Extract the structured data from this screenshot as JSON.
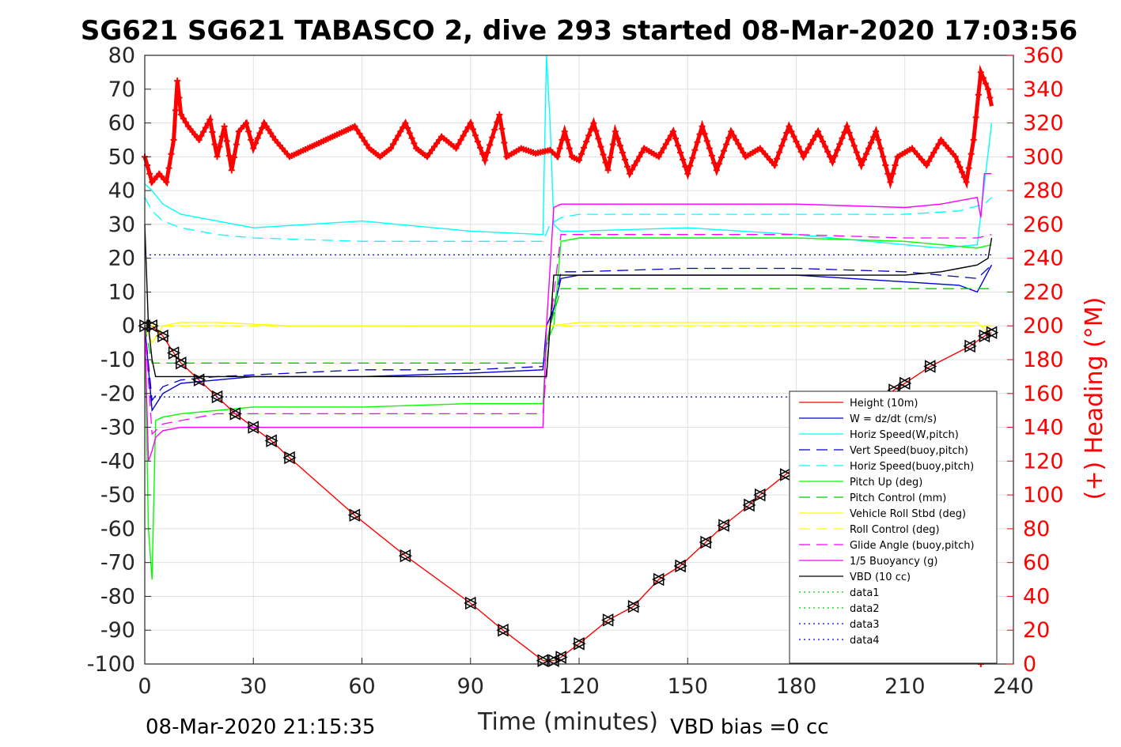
{
  "chart_data": {
    "type": "line",
    "title": "SG621 SG621 TABASCO 2, dive 293 started 08-Mar-2020 17:03:56",
    "xlabel": "Time (minutes)",
    "ylabel_right": "(+) Heading (°M)",
    "xlim": [
      0,
      240
    ],
    "ylim": [
      -100,
      80
    ],
    "ylim_right": [
      0,
      360
    ],
    "xticks": [
      "0",
      "30",
      "60",
      "90",
      "120",
      "150",
      "180",
      "210",
      "240"
    ],
    "yticks": [
      "80",
      "70",
      "60",
      "50",
      "40",
      "30",
      "20",
      "10",
      "0",
      "-10",
      "-20",
      "-30",
      "-40",
      "-50",
      "-60",
      "-70",
      "-80",
      "-90",
      "-100"
    ],
    "yticks_right": [
      "360",
      "340",
      "320",
      "300",
      "280",
      "260",
      "240",
      "220",
      "200",
      "180",
      "160",
      "140",
      "120",
      "100",
      "80",
      "60",
      "40",
      "20",
      "0"
    ],
    "grid": true,
    "legend_position": "bottom-right",
    "footer_left": "08-Mar-2020 21:15:35",
    "footer_right": "VBD bias =0 cc",
    "series": [
      {
        "name": "Height (10m)",
        "color": "#ff0000",
        "style": "solid",
        "x": [
          0,
          2,
          5,
          8,
          10,
          15,
          20,
          25,
          30,
          35,
          40,
          58,
          72,
          90,
          99,
          110,
          113,
          115,
          120,
          128,
          135,
          142,
          148,
          155,
          160,
          167,
          170,
          177,
          190,
          207,
          210,
          217,
          228,
          232,
          234
        ],
        "y": [
          0,
          0,
          -3,
          -8,
          -11,
          -16,
          -21,
          -26,
          -30,
          -34,
          -39,
          -56,
          -68,
          -82,
          -90,
          -99,
          -99,
          -98,
          -94,
          -87,
          -83,
          -75,
          -71,
          -64,
          -59,
          -53,
          -50,
          -44,
          -34,
          -19,
          -17,
          -12,
          -6,
          -3,
          -2
        ]
      },
      {
        "name": "W = dz/dt (cm/s)",
        "color": "#0000cc",
        "style": "solid",
        "x": [
          0,
          2,
          5,
          10,
          20,
          30,
          60,
          90,
          110,
          111,
          113,
          115,
          120,
          150,
          180,
          210,
          225,
          230,
          234
        ],
        "y": [
          0,
          -25,
          -20,
          -17,
          -16,
          -15,
          -15,
          -14,
          -13,
          0,
          5,
          14,
          15,
          15,
          15,
          13,
          12,
          10,
          18
        ]
      },
      {
        "name": "Horiz Speed(W,pitch)",
        "color": "#00ffff",
        "style": "solid",
        "x": [
          0,
          2,
          5,
          10,
          20,
          30,
          60,
          90,
          110,
          111,
          112,
          113,
          115,
          120,
          150,
          180,
          210,
          220,
          230,
          234
        ],
        "y": [
          42,
          40,
          36,
          33,
          31,
          29,
          31,
          28,
          27,
          80,
          60,
          30,
          28,
          28,
          29,
          27,
          24,
          23,
          24,
          60
        ]
      },
      {
        "name": "Vert Speed(buoy,pitch)",
        "color": "#0000cc",
        "style": "dashed",
        "x": [
          0,
          2,
          5,
          10,
          20,
          40,
          60,
          90,
          110,
          112,
          115,
          120,
          150,
          180,
          210,
          220,
          230,
          234
        ],
        "y": [
          0,
          -22,
          -18,
          -16,
          -15,
          -14,
          -13,
          -13,
          -12,
          0,
          16,
          16,
          17,
          17,
          16,
          15,
          14,
          18
        ]
      },
      {
        "name": "Horiz Speed(buoy,pitch)",
        "color": "#00ffff",
        "style": "dashed",
        "x": [
          0,
          2,
          5,
          10,
          20,
          30,
          60,
          90,
          110,
          112,
          115,
          120,
          150,
          180,
          210,
          225,
          232,
          234
        ],
        "y": [
          38,
          34,
          31,
          29,
          27,
          26,
          25,
          25,
          25,
          30,
          32,
          33,
          33,
          33,
          33,
          34,
          36,
          38
        ]
      },
      {
        "name": "Pitch Up (deg)",
        "color": "#00ff00",
        "style": "solid",
        "x": [
          0,
          1,
          2,
          3,
          5,
          10,
          20,
          30,
          60,
          90,
          110,
          111,
          113,
          115,
          120,
          150,
          180,
          210,
          230,
          234
        ],
        "y": [
          0,
          -60,
          -75,
          -28,
          -27,
          -26,
          -25,
          -24,
          -24,
          -23,
          -23,
          -5,
          0,
          25,
          26,
          26,
          26,
          25,
          23,
          24
        ]
      },
      {
        "name": "Pitch Control (mm)",
        "color": "#00cc00",
        "style": "dashed",
        "x": [
          0,
          2,
          5,
          110,
          112,
          115,
          234
        ],
        "y": [
          0,
          -11,
          -11,
          -11,
          0,
          11,
          11
        ]
      },
      {
        "name": "Vehicle Roll Stbd (deg)",
        "color": "#ffff00",
        "style": "solid",
        "x": [
          0,
          2,
          5,
          10,
          20,
          40,
          60,
          90,
          110,
          112,
          120,
          150,
          180,
          210,
          230,
          234
        ],
        "y": [
          0,
          -5,
          0,
          1,
          1,
          0,
          0,
          0,
          0,
          0,
          1,
          1,
          1,
          1,
          1,
          -3
        ]
      },
      {
        "name": "Roll Control (deg)",
        "color": "#ffff00",
        "style": "dashed",
        "x": [
          0,
          2,
          5,
          110,
          112,
          115,
          234
        ],
        "y": [
          0,
          0,
          0,
          0,
          0,
          0,
          0
        ]
      },
      {
        "name": "Glide Angle (buoy,pitch)",
        "color": "#ff00ff",
        "style": "dashed",
        "x": [
          0,
          2,
          5,
          10,
          20,
          60,
          90,
          110,
          112,
          115,
          120,
          150,
          180,
          210,
          230,
          234
        ],
        "y": [
          0,
          -32,
          -29,
          -28,
          -26,
          -26,
          -26,
          -26,
          0,
          27,
          27,
          27,
          27,
          26,
          26,
          27
        ]
      },
      {
        "name": "1/5 Buoyancy (g)",
        "color": "#ff00ff",
        "style": "solid",
        "x": [
          0,
          1,
          2,
          3,
          5,
          10,
          20,
          40,
          110,
          111,
          113,
          115,
          120,
          180,
          210,
          220,
          225,
          230,
          231,
          232,
          234
        ],
        "y": [
          0,
          -40,
          -37,
          -33,
          -31,
          -30,
          -30,
          -30,
          -30,
          0,
          35,
          36,
          36,
          36,
          35,
          36,
          37,
          38,
          32,
          45,
          45
        ]
      },
      {
        "name": "VBD (10 cc)",
        "color": "#000000",
        "style": "solid",
        "x": [
          0,
          1,
          2,
          3,
          110,
          111,
          112,
          113,
          210,
          220,
          225,
          230,
          233,
          234
        ],
        "y": [
          30,
          0,
          -10,
          -15,
          -15,
          -15,
          0,
          15,
          15,
          16,
          17,
          18,
          20,
          26
        ]
      },
      {
        "name": "data1",
        "color": "#00cc00",
        "style": "dotted",
        "x": [],
        "y": []
      },
      {
        "name": "data2",
        "color": "#00cc00",
        "style": "dotted",
        "x": [],
        "y": []
      },
      {
        "name": "data3",
        "color": "#0000cc",
        "style": "dotted",
        "x": [
          0,
          234
        ],
        "y": [
          21,
          21
        ]
      },
      {
        "name": "data4",
        "color": "#0000cc",
        "style": "dotted",
        "x": [
          0,
          234
        ],
        "y": [
          -21,
          -21
        ]
      }
    ],
    "heading": {
      "color": "#ff0000",
      "axis": "right",
      "x": [
        0,
        2,
        4,
        6,
        8,
        9,
        10,
        12,
        15,
        18,
        20,
        22,
        24,
        26,
        28,
        30,
        33,
        36,
        40,
        45,
        50,
        55,
        58,
        62,
        65,
        68,
        72,
        75,
        78,
        82,
        86,
        90,
        94,
        98,
        100,
        104,
        108,
        112,
        114,
        116,
        118,
        120,
        124,
        128,
        130,
        134,
        138,
        142,
        146,
        150,
        154,
        158,
        162,
        166,
        170,
        174,
        178,
        182,
        186,
        190,
        194,
        198,
        202,
        206,
        208,
        212,
        216,
        220,
        224,
        227,
        229,
        231,
        233,
        234
      ],
      "y": [
        300,
        285,
        290,
        285,
        310,
        345,
        325,
        318,
        310,
        322,
        300,
        318,
        292,
        315,
        320,
        305,
        320,
        310,
        300,
        305,
        310,
        315,
        318,
        305,
        300,
        305,
        320,
        305,
        300,
        312,
        305,
        320,
        298,
        325,
        300,
        305,
        302,
        304,
        300,
        315,
        300,
        298,
        320,
        292,
        315,
        290,
        305,
        300,
        315,
        290,
        318,
        292,
        315,
        300,
        305,
        295,
        318,
        300,
        315,
        297,
        318,
        295,
        315,
        285,
        300,
        305,
        295,
        310,
        300,
        285,
        310,
        350,
        340,
        330
      ],
      "markers_bottom_x": [
        231,
        232,
        233
      ],
      "markers_bottom_y": [
        0,
        3,
        6
      ]
    }
  }
}
